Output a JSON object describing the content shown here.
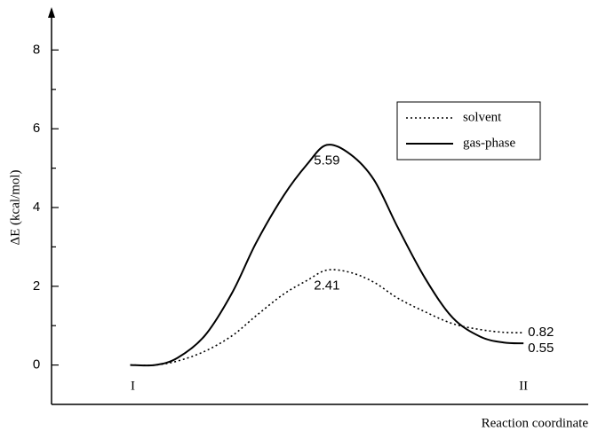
{
  "chart_data": {
    "type": "line",
    "ylabel": "ΔE (kcal/mol)",
    "xlabel": "Reaction coordinate",
    "ylim": [
      -1,
      9
    ],
    "yticks": [
      0,
      2,
      4,
      6,
      8
    ],
    "yminorticks": [
      1,
      3,
      5,
      7
    ],
    "xlim": [
      -0.2,
      1.16
    ],
    "annotations": [
      "I",
      "II"
    ],
    "label_points": [
      8,
      16
    ],
    "legend": "upper right",
    "series": [
      {
        "name": "solvent",
        "color": "#000000",
        "dash": "dotted",
        "x": [
          0,
          0.063,
          0.12,
          0.19,
          0.26,
          0.32,
          0.39,
          0.45,
          0.5,
          0.56,
          0.62,
          0.68,
          0.75,
          0.82,
          0.89,
          0.95,
          1.0
        ],
        "values": [
          0,
          0,
          0.1,
          0.35,
          0.75,
          1.25,
          1.8,
          2.15,
          2.41,
          2.35,
          2.1,
          1.7,
          1.35,
          1.05,
          0.9,
          0.83,
          0.82
        ]
      },
      {
        "name": "gas-phase",
        "color": "#000000",
        "dash": "solid",
        "x": [
          0,
          0.063,
          0.12,
          0.19,
          0.26,
          0.32,
          0.39,
          0.45,
          0.5,
          0.56,
          0.62,
          0.68,
          0.75,
          0.82,
          0.89,
          0.95,
          1.0
        ],
        "values": [
          0,
          0,
          0.18,
          0.75,
          1.85,
          3.1,
          4.3,
          5.1,
          5.59,
          5.35,
          4.7,
          3.5,
          2.2,
          1.2,
          0.72,
          0.57,
          0.55
        ]
      }
    ]
  }
}
